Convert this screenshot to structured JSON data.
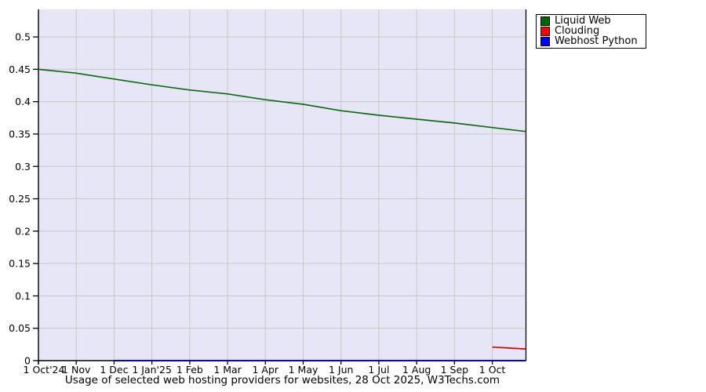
{
  "figure": {
    "background": "#ffffff",
    "plot_background": "#e6e6f7",
    "grid_color": "#c8c8c8",
    "axis_color": "#000000",
    "caption": "Usage of selected web hosting providers for websites, 28 Oct 2025, W3Techs.com"
  },
  "legend": {
    "position": "outside-top-right",
    "items": [
      {
        "label": "Liquid Web",
        "color": "#006400"
      },
      {
        "label": "Clouding",
        "color": "#ff0000"
      },
      {
        "label": "Webhost Python",
        "color": "#0000ff"
      }
    ]
  },
  "chart_data": {
    "type": "line",
    "title": "Usage of selected web hosting providers for websites, 28 Oct 2025, W3Techs.com",
    "xlabel": "",
    "ylabel": "",
    "grid": true,
    "x_unit": "months since 1 Oct 2024",
    "xlim": [
      0,
      12.88
    ],
    "ylim": [
      0,
      0.5425
    ],
    "x_ticks": [
      {
        "pos": 0,
        "label": "1 Oct'24"
      },
      {
        "pos": 1,
        "label": "1 Nov"
      },
      {
        "pos": 2,
        "label": "1 Dec"
      },
      {
        "pos": 3,
        "label": "1 Jan'25"
      },
      {
        "pos": 4,
        "label": "1 Feb"
      },
      {
        "pos": 5,
        "label": "1 Mar"
      },
      {
        "pos": 6,
        "label": "1 Apr"
      },
      {
        "pos": 7,
        "label": "1 May"
      },
      {
        "pos": 8,
        "label": "1 Jun"
      },
      {
        "pos": 9,
        "label": "1 Jul"
      },
      {
        "pos": 10,
        "label": "1 Aug"
      },
      {
        "pos": 11,
        "label": "1 Sep"
      },
      {
        "pos": 12,
        "label": "1 Oct"
      }
    ],
    "y_ticks": [
      {
        "pos": 0,
        "label": "0"
      },
      {
        "pos": 0.05,
        "label": "0.05"
      },
      {
        "pos": 0.1,
        "label": "0.1"
      },
      {
        "pos": 0.15,
        "label": "0.15"
      },
      {
        "pos": 0.2,
        "label": "0.2"
      },
      {
        "pos": 0.25,
        "label": "0.25"
      },
      {
        "pos": 0.3,
        "label": "0.3"
      },
      {
        "pos": 0.35,
        "label": "0.35"
      },
      {
        "pos": 0.4,
        "label": "0.4"
      },
      {
        "pos": 0.45,
        "label": "0.45"
      },
      {
        "pos": 0.5,
        "label": "0.5"
      }
    ],
    "series": [
      {
        "name": "Liquid Web",
        "color": "#0f6d14",
        "stroke_width": 1.7,
        "x": [
          0,
          1,
          2,
          3,
          4,
          5,
          6,
          7,
          8,
          9,
          10,
          11,
          12,
          12.88
        ],
        "y": [
          0.45,
          0.444,
          0.435,
          0.426,
          0.418,
          0.412,
          0.403,
          0.396,
          0.386,
          0.379,
          0.373,
          0.367,
          0.36,
          0.354
        ]
      },
      {
        "name": "Clouding",
        "color": "#e00000",
        "stroke_width": 1.7,
        "x": [
          12,
          12.88
        ],
        "y": [
          0.021,
          0.018
        ]
      },
      {
        "name": "Webhost Python",
        "color": "#0000ee",
        "stroke_width": 2,
        "x": [
          2,
          12.88
        ],
        "y": [
          0,
          0
        ]
      }
    ]
  }
}
